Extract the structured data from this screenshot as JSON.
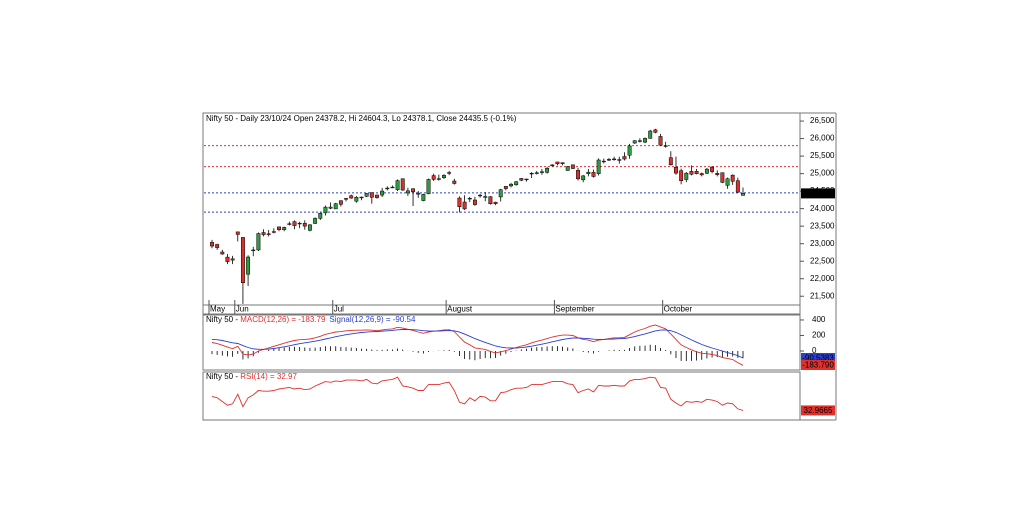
{
  "chart_data": [
    {
      "type": "candlestick",
      "title": "Nifty 50 - Daily 23/10/24 Open 24378.2, Hi 24604.3, Lo 24378.1, Close 24435.5 (-0.1%)",
      "categories": [
        "May",
        null,
        null,
        null,
        null,
        "Jun",
        null,
        null,
        null,
        null,
        null,
        null,
        null,
        null,
        null,
        null,
        null,
        null,
        null,
        null,
        null,
        null,
        null,
        null,
        "Jul",
        null,
        null,
        null,
        null,
        null,
        null,
        null,
        null,
        null,
        null,
        null,
        null,
        null,
        null,
        null,
        null,
        null,
        null,
        null,
        null,
        null,
        "August",
        null,
        null,
        null,
        null,
        null,
        null,
        null,
        null,
        null,
        null,
        null,
        null,
        null,
        null,
        null,
        null,
        null,
        null,
        null,
        null,
        "September",
        null,
        null,
        null,
        null,
        null,
        null,
        null,
        null,
        null,
        null,
        null,
        null,
        null,
        null,
        null,
        null,
        null,
        null,
        null,
        null,
        "October",
        null,
        null,
        null,
        null,
        null,
        null,
        null,
        null,
        null,
        null,
        null,
        null,
        null,
        null,
        null
      ],
      "open": [
        23038,
        22977,
        22762,
        22617,
        22568,
        23337,
        23179,
        22128,
        22798,
        22821,
        23319,
        23283,
        23345,
        23480,
        23399,
        23570,
        23629,
        23586,
        23584,
        23382,
        23578,
        23723,
        23881,
        24045,
        23993,
        24228,
        24291,
        24369,
        24213,
        24330,
        24351,
        24459,
        24388,
        24387,
        24572,
        24615,
        24543,
        24854,
        24446,
        24568,
        24444,
        24231,
        24424,
        24943,
        24840,
        24886,
        25031,
        24789,
        24303,
        24189,
        24289,
        24247,
        24386,
        24321,
        24342,
        24185,
        24334,
        24637,
        24648,
        24680,
        24863,
        24845,
        25011,
        25024,
        25030,
        25035,
        25249,
        25333,
        25313,
        25089,
        25250,
        25094,
        24823,
        24999,
        25035,
        24999,
        25352,
        25406,
        25416,
        25402,
        25488,
        25525,
        25873,
        25922,
        25899,
        26005,
        26249,
        26061,
        25788,
        25453,
        25181,
        25085,
        24832,
        25065,
        25067,
        25002,
        25009,
        25186,
        25008,
        25027,
        24664,
        24956,
        24798,
        24378.2
      ],
      "high": [
        23110,
        23000,
        22826,
        22705,
        22653,
        23339,
        23179,
        22670,
        22910,
        23320,
        23412,
        23390,
        23441,
        23481,
        23490,
        23631,
        23665,
        23624,
        23668,
        23558,
        23754,
        23889,
        24087,
        24174,
        24164,
        24237,
        24309,
        24401,
        24364,
        24345,
        24443,
        24461,
        24402,
        24593,
        24636,
        24662,
        24837,
        24854,
        24595,
        24582,
        24504,
        24426,
        24861,
        24999,
        24971,
        24985,
        25078,
        24851,
        24350,
        24382,
        24337,
        24340,
        24419,
        24473,
        24359,
        24196,
        24563,
        24638,
        24734,
        24787,
        24867,
        24858,
        25043,
        25074,
        25130,
        25193,
        25268,
        25333,
        25321,
        25217,
        25260,
        25168,
        24957,
        25131,
        25114,
        25434,
        25430,
        25445,
        25482,
        25482,
        25611,
        25850,
        25956,
        26011,
        26033,
        26250,
        26278,
        26135,
        25907,
        25639,
        25485,
        25143,
        25045,
        25234,
        25134,
        25029,
        25159,
        25212,
        25093,
        25029,
        24886,
        24978,
        24882,
        24604.3
      ],
      "low": [
        22871,
        22825,
        22685,
        22417,
        22417,
        23062,
        21281,
        21791,
        22642,
        22789,
        23207,
        23206,
        23295,
        23354,
        23354,
        23521,
        23413,
        23442,
        23398,
        23350,
        23562,
        23674,
        23805,
        23985,
        23993,
        24056,
        24207,
        24281,
        24169,
        24241,
        24332,
        24141,
        24281,
        24332,
        24522,
        24587,
        24504,
        24508,
        24362,
        24074,
        24307,
        24211,
        24411,
        24790,
        24799,
        24845,
        24956,
        24687,
        23893,
        23960,
        24185,
        24079,
        24311,
        24212,
        24116,
        24100,
        24204,
        24522,
        24607,
        24654,
        24784,
        24771,
        24874,
        24973,
        24965,
        24998,
        25199,
        25235,
        25236,
        25084,
        25135,
        24802,
        24754,
        24922,
        24885,
        24945,
        25292,
        25361,
        25366,
        25285,
        25376,
        25426,
        25847,
        25886,
        25871,
        25998,
        26151,
        25794,
        25740,
        25230,
        24967,
        24694,
        24757,
        24948,
        24979,
        24921,
        24990,
        25008,
        24920,
        24728,
        24567,
        24679,
        24445,
        24378.1
      ],
      "close": [
        22932,
        22888,
        22704,
        22488,
        22531,
        23264,
        21884,
        22620,
        22821,
        23290,
        23259,
        23265,
        23323,
        23399,
        23466,
        23558,
        23516,
        23567,
        23501,
        23538,
        23721,
        23869,
        24044,
        24011,
        24142,
        24124,
        24286,
        24302,
        24324,
        24321,
        24433,
        24324,
        24316,
        24502,
        24587,
        24613,
        24801,
        24531,
        24509,
        24479,
        24413,
        24406,
        24834,
        24836,
        24857,
        24951,
        25011,
        24718,
        24056,
        23992,
        24297,
        24117,
        24368,
        24347,
        24139,
        24143,
        24541,
        24573,
        24698,
        24770,
        24811,
        24823,
        25010,
        25017,
        25052,
        25152,
        25236,
        25279,
        25280,
        25199,
        25145,
        24852,
        24936,
        25041,
        24918,
        25389,
        25357,
        25384,
        25419,
        25377,
        25416,
        25791,
        25939,
        25940,
        26004,
        26216,
        26179,
        25811,
        25797,
        25251,
        25015,
        24796,
        25013,
        24982,
        24998,
        24964,
        25128,
        25057,
        24971,
        24750,
        24854,
        24781,
        24472,
        24435.5
      ],
      "up_color": "#2e9b3f",
      "down_color": "#d9302c",
      "ylim": [
        21250,
        26730
      ],
      "yticks": [
        {
          "value": 21500,
          "label": "21,500"
        },
        {
          "value": 22000,
          "label": "22,000"
        },
        {
          "value": 22500,
          "label": "22,500"
        },
        {
          "value": 23000,
          "label": "23,000"
        },
        {
          "value": 23500,
          "label": "23,500"
        },
        {
          "value": 24000,
          "label": "24,000"
        },
        {
          "value": 24500,
          "label": "24,500"
        },
        {
          "value": 25000,
          "label": "25,000"
        },
        {
          "value": 25500,
          "label": "25,500"
        },
        {
          "value": 26000,
          "label": "26,000"
        },
        {
          "value": 26500,
          "label": "26,500"
        }
      ],
      "levels": [
        {
          "value": 25800,
          "color": "#e0302c"
        },
        {
          "value": 25200,
          "color": "#e0302c"
        },
        {
          "value": 24450,
          "color": "#2a3fd0"
        },
        {
          "value": 23900,
          "color": "#2a3fd0"
        }
      ],
      "last": {
        "value": 24435.5,
        "label": "24,435.5"
      }
    },
    {
      "type": "line",
      "prefix": "Nifty 50 - ",
      "ylim": [
        -245,
        464
      ],
      "yticks": [
        0,
        200,
        400
      ],
      "histogram_color": "#000000",
      "series": [
        {
          "name": "MACD(12,26) = -183.79",
          "color": "#e0302c",
          "last_label": "-183.790",
          "values": [
            110,
            95,
            75,
            50,
            30,
            60,
            -40,
            -50,
            -40,
            0,
            20,
            40,
            60,
            80,
            100,
            120,
            135,
            145,
            150,
            155,
            170,
            190,
            215,
            230,
            245,
            250,
            260,
            265,
            268,
            268,
            272,
            268,
            262,
            270,
            280,
            285,
            305,
            295,
            280,
            265,
            245,
            228,
            245,
            255,
            262,
            270,
            275,
            250,
            180,
            115,
            80,
            40,
            30,
            20,
            -5,
            -25,
            -10,
            5,
            25,
            45,
            65,
            80,
            105,
            125,
            140,
            160,
            180,
            195,
            205,
            205,
            200,
            170,
            150,
            140,
            120,
            140,
            150,
            160,
            170,
            170,
            175,
            210,
            245,
            270,
            290,
            320,
            335,
            310,
            285,
            220,
            150,
            80,
            45,
            15,
            -10,
            -30,
            -35,
            -45,
            -60,
            -85,
            -95,
            -110,
            -150,
            -183.79
          ]
        },
        {
          "name": "Signal(12,26,9) = -90.54",
          "color": "#2a3fd0",
          "last_label": "-90.5383",
          "values": [
            150,
            145,
            135,
            120,
            105,
            97,
            70,
            45,
            28,
            22,
            22,
            25,
            32,
            42,
            54,
            67,
            81,
            94,
            105,
            115,
            126,
            139,
            154,
            169,
            184,
            197,
            210,
            221,
            230,
            238,
            244,
            249,
            251,
            255,
            260,
            265,
            273,
            277,
            278,
            275,
            269,
            261,
            258,
            257,
            258,
            260,
            263,
            260,
            244,
            218,
            190,
            160,
            134,
            111,
            88,
            65,
            50,
            41,
            38,
            39,
            44,
            51,
            62,
            75,
            88,
            102,
            118,
            133,
            148,
            159,
            167,
            168,
            164,
            160,
            152,
            150,
            150,
            152,
            155,
            158,
            161,
            171,
            186,
            203,
            220,
            240,
            259,
            269,
            272,
            262,
            240,
            208,
            175,
            143,
            113,
            84,
            60,
            39,
            19,
            -2,
            -21,
            -39,
            -61,
            -90.54
          ]
        }
      ]
    },
    {
      "type": "line",
      "prefix": "Nifty 50 - ",
      "ylim": [
        20,
        85
      ],
      "series": [
        {
          "name": "RSI(14) = 32.97",
          "color": "#e0302c",
          "last_label": "32.9665",
          "values": [
            52,
            50,
            45,
            40,
            42,
            55,
            38,
            50,
            54,
            60,
            59,
            59,
            60,
            62,
            63,
            64,
            62,
            63,
            61,
            62,
            66,
            69,
            72,
            71,
            73,
            72,
            74,
            74,
            74,
            73,
            75,
            70,
            69,
            73,
            74,
            75,
            78,
            66,
            65,
            63,
            60,
            60,
            68,
            68,
            68,
            70,
            71,
            60,
            44,
            42,
            50,
            46,
            52,
            51,
            46,
            46,
            57,
            58,
            61,
            63,
            63,
            64,
            68,
            68,
            68,
            70,
            72,
            72,
            72,
            69,
            68,
            57,
            60,
            62,
            58,
            67,
            66,
            66,
            67,
            66,
            66,
            73,
            75,
            75,
            76,
            78,
            77,
            64,
            63,
            48,
            43,
            39,
            45,
            44,
            45,
            44,
            48,
            47,
            45,
            40,
            43,
            42,
            35,
            32.97
          ]
        }
      ]
    }
  ]
}
